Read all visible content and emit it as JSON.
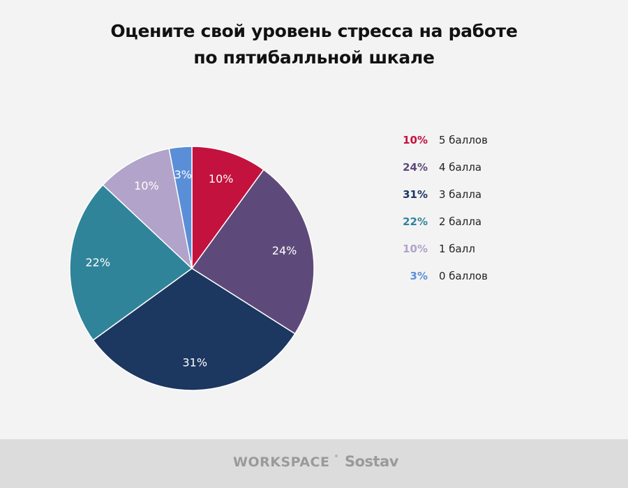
{
  "title": {
    "line1": "Оцените свой уровень стресса на работе",
    "line2": "по пятибалльной шкале"
  },
  "chart_data": {
    "type": "pie",
    "title": "Оцените свой уровень стресса на работе по пятибалльной шкале",
    "start_angle_deg": 0,
    "direction": "clockwise",
    "legend_position": "right",
    "slices": [
      {
        "label": "5 баллов",
        "value": 10,
        "value_label": "10%",
        "color": "#c3123d",
        "label_color": "#ffffff"
      },
      {
        "label": "4 балла",
        "value": 24,
        "value_label": "24%",
        "color": "#5e4a7a",
        "label_color": "#ffffff"
      },
      {
        "label": "3 балла",
        "value": 31,
        "value_label": "31%",
        "color": "#1c3760",
        "label_color": "#ffffff"
      },
      {
        "label": "2 балла",
        "value": 22,
        "value_label": "22%",
        "color": "#308499",
        "label_color": "#ffffff"
      },
      {
        "label": "1 балл",
        "value": 10,
        "value_label": "10%",
        "color": "#b1a3c9",
        "label_color": "#ffffff"
      },
      {
        "label": "0 баллов",
        "value": 3,
        "value_label": "3%",
        "color": "#5a8fd8",
        "label_color": "#ffffff"
      }
    ]
  },
  "legend": {
    "items": [
      {
        "pct": "10%",
        "label": "5 баллов",
        "color": "#c3123d"
      },
      {
        "pct": "24%",
        "label": "4 балла",
        "color": "#5e4a7a"
      },
      {
        "pct": "31%",
        "label": "3 балла",
        "color": "#1c3760"
      },
      {
        "pct": "22%",
        "label": "2 балла",
        "color": "#308499"
      },
      {
        "pct": "10%",
        "label": "1 балл",
        "color": "#b1a3c9"
      },
      {
        "pct": "3%",
        "label": "0 баллов",
        "color": "#5a8fd8"
      }
    ]
  },
  "footer": {
    "logo_workspace": "WORKSPACE",
    "logo_sostav": "Sostav"
  }
}
